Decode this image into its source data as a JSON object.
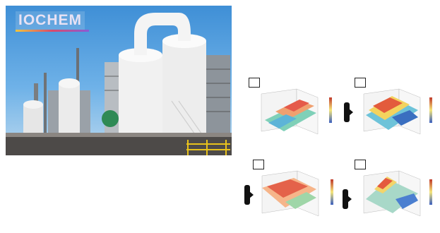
{
  "photo": {
    "logo_text": "IOCHEM"
  },
  "panels": [
    {
      "label": "",
      "title": ""
    },
    {
      "label": "",
      "title": ""
    },
    {
      "label": "",
      "title": ""
    },
    {
      "label": "",
      "title": ""
    }
  ],
  "colors": {
    "sky": "#4a97dc",
    "tank": "#f2f2f2",
    "ground": "#4d4a48",
    "rail": "#e8c21c"
  }
}
